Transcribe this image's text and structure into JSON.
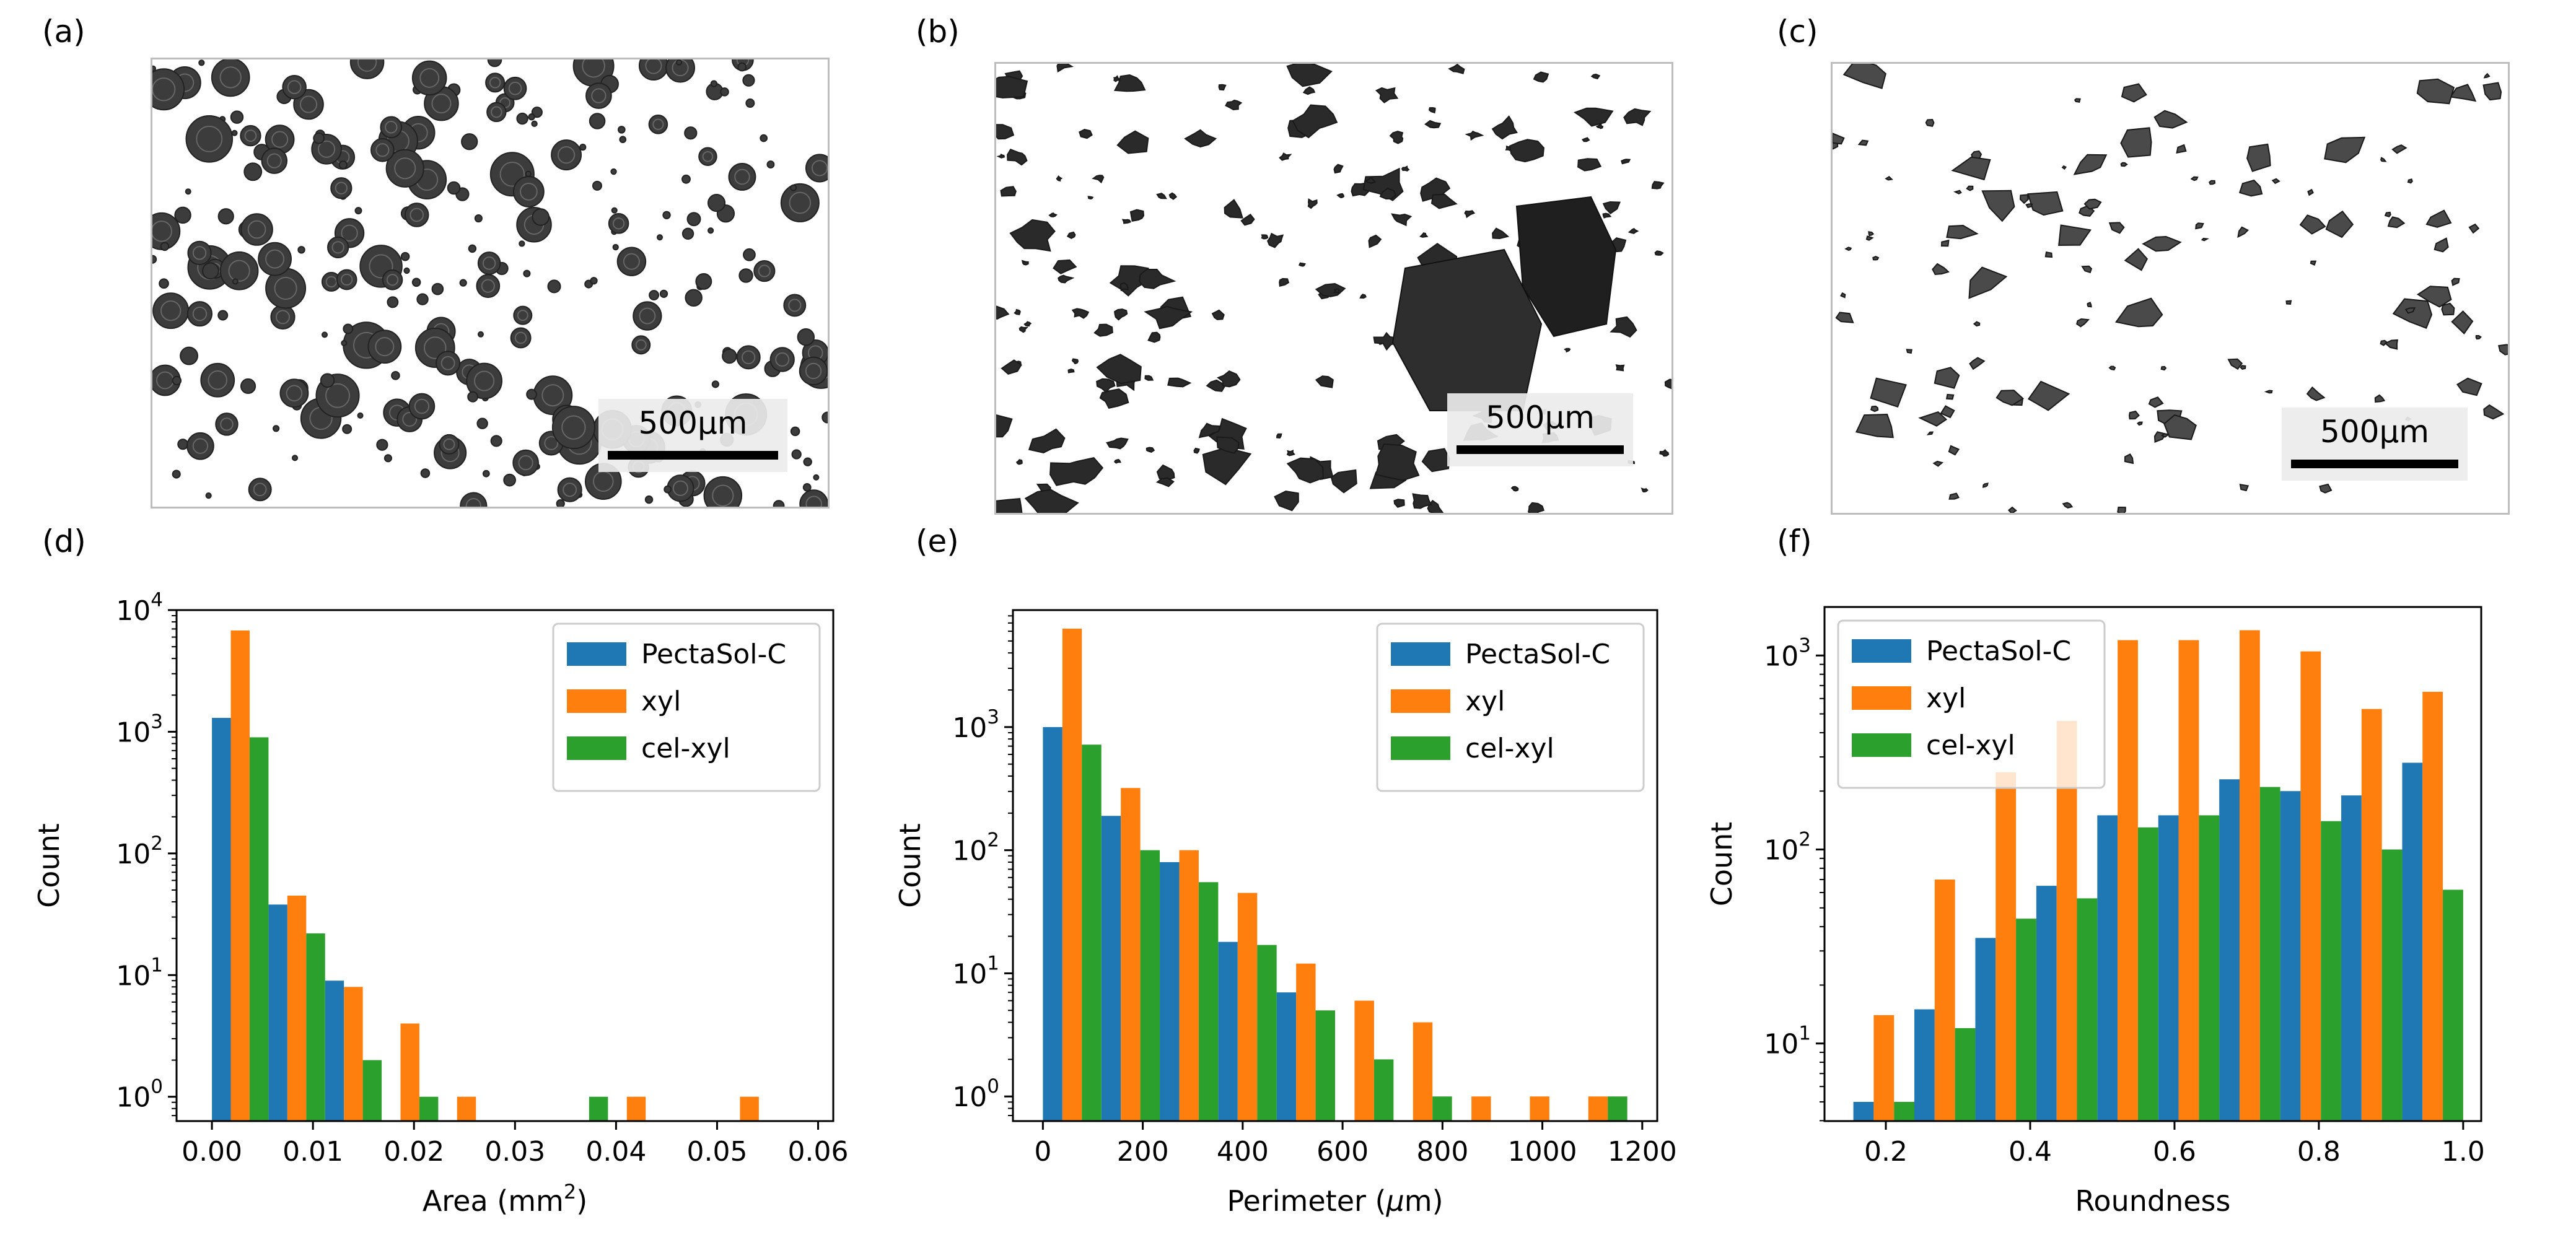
{
  "panels": {
    "a": "(a)",
    "b": "(b)",
    "c": "(c)",
    "d": "(d)",
    "e": "(e)",
    "f": "(f)"
  },
  "micrographs": [
    {
      "id": "a",
      "scale_bar": "500µm",
      "particle_shape": "round",
      "particle_color": "#3c3c3c"
    },
    {
      "id": "b",
      "scale_bar": "500µm",
      "particle_shape": "irregular",
      "particle_color": "#2a2a2a"
    },
    {
      "id": "c",
      "scale_bar": "500µm",
      "particle_shape": "angular",
      "particle_color": "#4a4a4a"
    }
  ],
  "colors": {
    "PectaSol-C": "#1f77b4",
    "xyl": "#ff7f0e",
    "cel-xyl": "#2ca02c"
  },
  "legend_labels": [
    "PectaSol-C",
    "xyl",
    "cel-xyl"
  ],
  "chart_data": [
    {
      "type": "bar",
      "yscale": "log",
      "title": "",
      "xlabel": "Area (mm",
      "xlabel_sup": "2",
      "xlabel_end": ")",
      "ylabel": "Count",
      "xlim": [
        -0.0035,
        0.0615
      ],
      "ylim_exp": [
        -0.2,
        4.0
      ],
      "ytick_exps": [
        0,
        1,
        2,
        3,
        4
      ],
      "ytick_base": "10",
      "xticks": [
        0.0,
        0.01,
        0.02,
        0.03,
        0.04,
        0.05,
        0.06
      ],
      "xtick_labels": [
        "0.00",
        "0.01",
        "0.02",
        "0.03",
        "0.04",
        "0.05",
        "0.06"
      ],
      "bin_edges": [
        0,
        0.0056,
        0.0112,
        0.0168,
        0.0224,
        0.028,
        0.0336,
        0.0392,
        0.0448,
        0.0504,
        0.056
      ],
      "legend_position": "top-right",
      "series": [
        {
          "name": "PectaSol-C",
          "values": [
            1300,
            38,
            9,
            0,
            0,
            0,
            0,
            0,
            0,
            0
          ]
        },
        {
          "name": "xyl",
          "values": [
            6800,
            45,
            8,
            4,
            1,
            0,
            0,
            1,
            0,
            1
          ]
        },
        {
          "name": "cel-xyl",
          "values": [
            900,
            22,
            2,
            1,
            0,
            0,
            1,
            0,
            0,
            0
          ]
        }
      ]
    },
    {
      "type": "bar",
      "yscale": "log",
      "title": "",
      "xlabel": "Perimeter (",
      "xlabel_greek": "µ",
      "xlabel_end": "m)",
      "ylabel": "Count",
      "xlim": [
        -60,
        1230
      ],
      "ylim_exp": [
        -0.2,
        3.95
      ],
      "ytick_exps": [
        0,
        1,
        2,
        3
      ],
      "ytick_base": "10",
      "xticks": [
        0,
        200,
        400,
        600,
        800,
        1000,
        1200
      ],
      "xtick_labels": [
        "0",
        "200",
        "400",
        "600",
        "800",
        "1000",
        "1200"
      ],
      "bin_edges": [
        0,
        117,
        234,
        351,
        468,
        585,
        702,
        819,
        936,
        1053,
        1170
      ],
      "legend_position": "top-right",
      "series": [
        {
          "name": "PectaSol-C",
          "values": [
            1000,
            190,
            80,
            18,
            7,
            0,
            0,
            0,
            0,
            0
          ]
        },
        {
          "name": "xyl",
          "values": [
            6300,
            320,
            100,
            45,
            12,
            6,
            4,
            1,
            1,
            1
          ]
        },
        {
          "name": "cel-xyl",
          "values": [
            720,
            100,
            55,
            17,
            5,
            2,
            1,
            0,
            0,
            1
          ]
        }
      ]
    },
    {
      "type": "bar",
      "yscale": "log",
      "title": "",
      "xlabel": "Roundness",
      "ylabel": "Count",
      "xlim": [
        0.115,
        1.025
      ],
      "ylim_exp": [
        0.6,
        3.25
      ],
      "ytick_exps": [
        1,
        2,
        3
      ],
      "ytick_base": "10",
      "xticks": [
        0.2,
        0.4,
        0.6,
        0.8,
        1.0
      ],
      "xtick_labels": [
        "0.2",
        "0.4",
        "0.6",
        "0.8",
        "1.0"
      ],
      "bin_edges": [
        0.155,
        0.2395,
        0.324,
        0.4085,
        0.493,
        0.5775,
        0.662,
        0.7465,
        0.831,
        0.9155,
        1.0
      ],
      "legend_position": "top-left",
      "series": [
        {
          "name": "PectaSol-C",
          "values": [
            5,
            15,
            35,
            65,
            150,
            150,
            230,
            200,
            190,
            280
          ]
        },
        {
          "name": "xyl",
          "values": [
            14,
            70,
            250,
            460,
            1200,
            1200,
            1350,
            1050,
            530,
            650
          ]
        },
        {
          "name": "cel-xyl",
          "values": [
            5,
            12,
            44,
            56,
            130,
            150,
            210,
            140,
            100,
            62
          ]
        }
      ]
    }
  ]
}
